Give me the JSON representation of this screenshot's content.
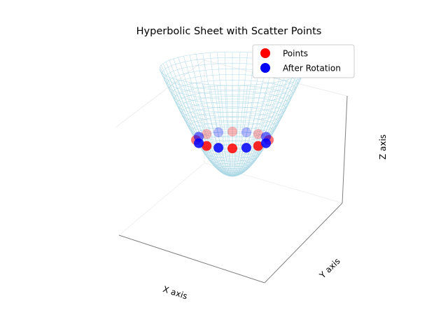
{
  "chart_data": {
    "type": "scatter",
    "projection": "3d",
    "title": "Hyperbolic Sheet with Scatter Points",
    "xlabel": "X axis",
    "ylabel": "Y axis",
    "zlabel": "Z axis",
    "grid": false,
    "ticks": "hidden",
    "surface": {
      "name": "hyperbolic sheet",
      "style": "wireframe",
      "color": "#add8e6",
      "equation": "z = sqrt(1 + x^2 + y^2)",
      "radius_range": [
        0,
        2
      ],
      "samples": 30
    },
    "series": [
      {
        "name": "Points",
        "color": "#ff0000",
        "points": [
          [
            1,
            0,
            1.414
          ],
          [
            0.707,
            0.707,
            1.414
          ],
          [
            0,
            1,
            1.414
          ],
          [
            -0.707,
            0.707,
            1.414
          ],
          [
            -1,
            0,
            1.414
          ],
          [
            -0.707,
            -0.707,
            1.414
          ],
          [
            0,
            -1,
            1.414
          ],
          [
            0.707,
            -0.707,
            1.414
          ]
        ]
      },
      {
        "name": "After Rotation",
        "color": "#0000ff",
        "points": [
          [
            0.924,
            0.383,
            1.414
          ],
          [
            0.383,
            0.924,
            1.414
          ],
          [
            -0.383,
            0.924,
            1.414
          ],
          [
            -0.924,
            0.383,
            1.414
          ],
          [
            -0.924,
            -0.383,
            1.414
          ],
          [
            -0.383,
            -0.924,
            1.414
          ],
          [
            0.383,
            -0.924,
            1.414
          ],
          [
            0.924,
            -0.383,
            1.414
          ]
        ]
      }
    ],
    "legend": {
      "position": "top-right",
      "entries": [
        "Points",
        "After Rotation"
      ]
    }
  }
}
